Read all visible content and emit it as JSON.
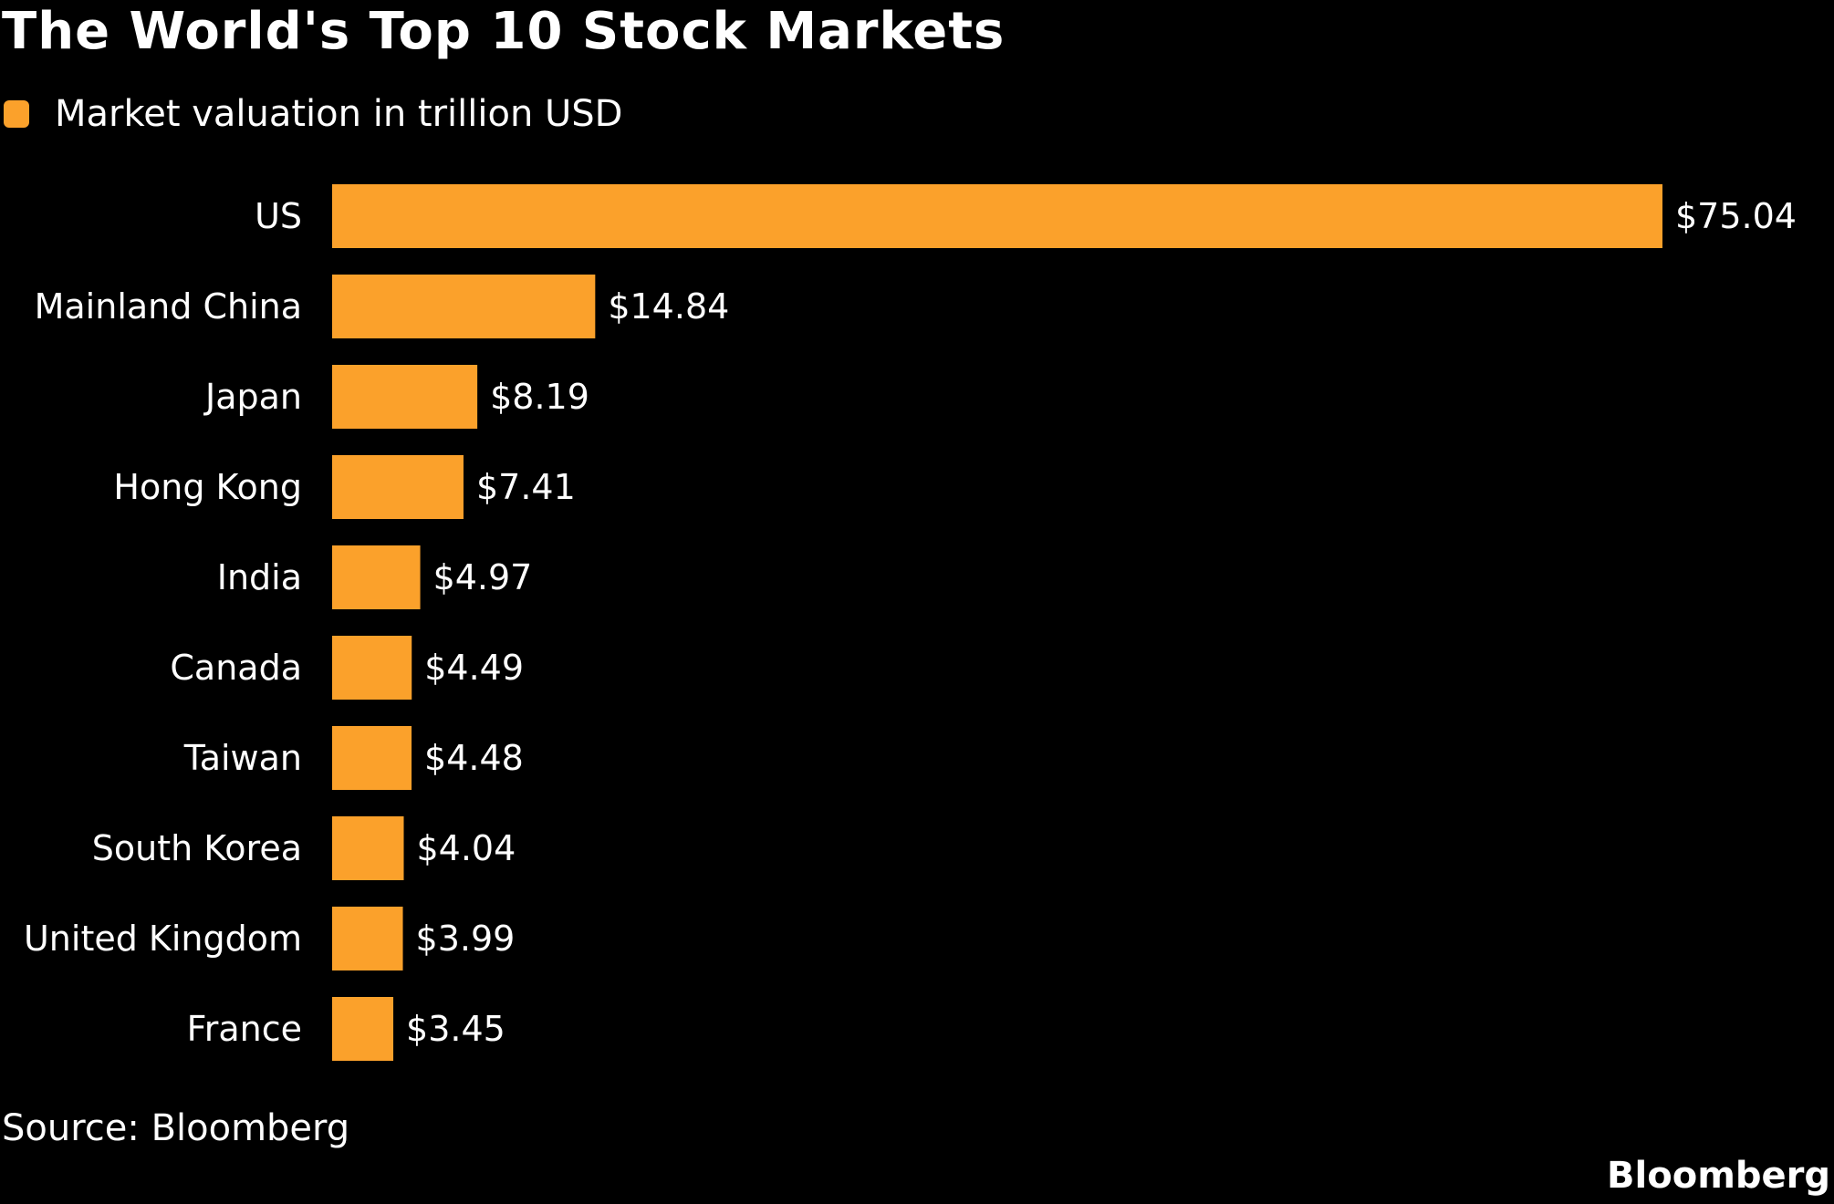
{
  "chart_data": {
    "type": "bar",
    "orientation": "horizontal",
    "title": "The World's Top 10 Stock Markets",
    "legend": [
      {
        "name": "Market valuation in trillion USD",
        "color": "#FBA12B"
      }
    ],
    "legend_placement": "top-left",
    "categories": [
      "US",
      "Mainland China",
      "Japan",
      "Hong Kong",
      "India",
      "Canada",
      "Taiwan",
      "South Korea",
      "United Kingdom",
      "France"
    ],
    "series": [
      {
        "name": "Market valuation in trillion USD",
        "values": [
          75.04,
          14.84,
          8.19,
          7.41,
          4.97,
          4.49,
          4.48,
          4.04,
          3.99,
          3.45
        ]
      }
    ],
    "data_labels": [
      "$75.04",
      "$14.84",
      "$8.19",
      "$7.41",
      "$4.97",
      "$4.49",
      "$4.48",
      "$4.04",
      "$3.99",
      "$3.45"
    ],
    "xlim": [
      0,
      75.04
    ],
    "grid": false,
    "bar_color": "#FBA12B",
    "background": "#000000"
  },
  "footer": {
    "source": "Source: Bloomberg",
    "brand": "Bloomberg"
  }
}
